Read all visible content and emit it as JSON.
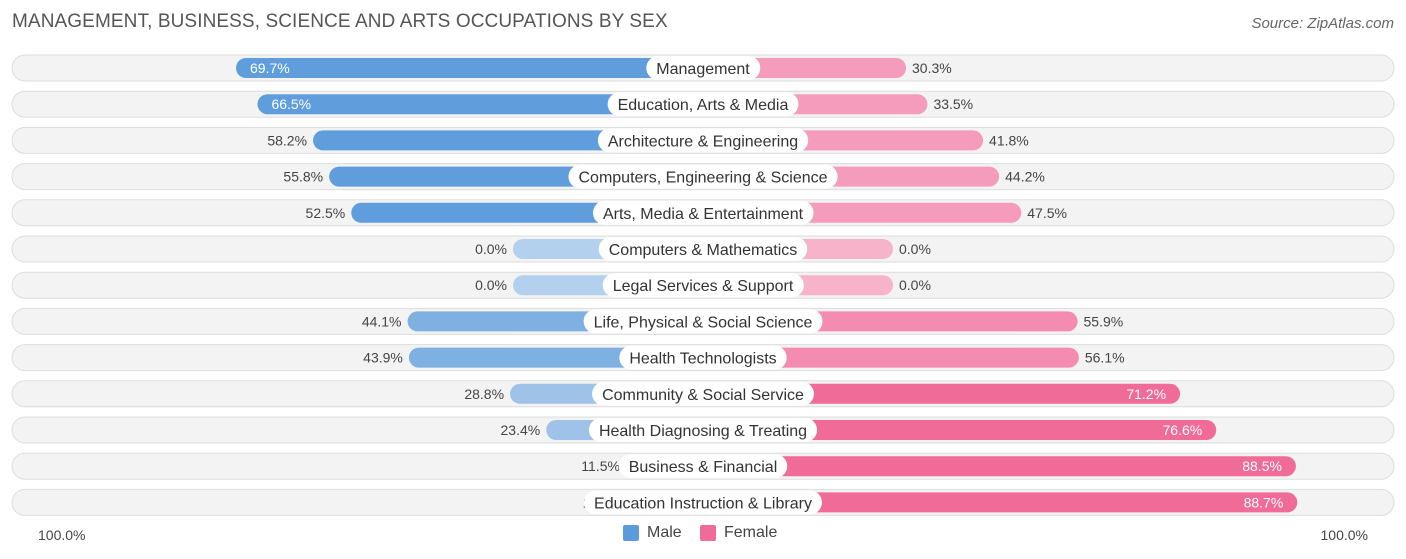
{
  "header": {
    "title": "MANAGEMENT, BUSINESS, SCIENCE AND ARTS OCCUPATIONS BY SEX",
    "source": "Source: ZipAtlas.com"
  },
  "legend": {
    "male_label": "Male",
    "female_label": "Female"
  },
  "axis": {
    "left_label": "100.0%",
    "right_label": "100.0%"
  },
  "colors": {
    "male_strong": "#5b9bdc",
    "male_light": "#a9c9ea",
    "female_strong": "#f06b98",
    "female_light": "#f7a9c3",
    "track": "#f1f1f1"
  },
  "chart_data": {
    "type": "bar",
    "orientation": "horizontal-diverging",
    "title": "MANAGEMENT, BUSINESS, SCIENCE AND ARTS OCCUPATIONS BY SEX",
    "xlim": [
      -100,
      100
    ],
    "categories": [
      "Management",
      "Education, Arts & Media",
      "Architecture & Engineering",
      "Computers, Engineering & Science",
      "Arts, Media & Entertainment",
      "Computers & Mathematics",
      "Legal Services & Support",
      "Life, Physical & Social Science",
      "Health Technologists",
      "Community & Social Service",
      "Health Diagnosing & Treating",
      "Business & Financial",
      "Education Instruction & Library"
    ],
    "series": [
      {
        "name": "Male",
        "values": [
          69.7,
          66.5,
          58.2,
          55.8,
          52.5,
          0.0,
          0.0,
          44.1,
          43.9,
          28.8,
          23.4,
          11.5,
          11.3
        ],
        "labels": [
          "69.7%",
          "66.5%",
          "58.2%",
          "55.8%",
          "52.5%",
          "0.0%",
          "0.0%",
          "44.1%",
          "43.9%",
          "28.8%",
          "23.4%",
          "11.5%",
          "11.3%"
        ]
      },
      {
        "name": "Female",
        "values": [
          30.3,
          33.5,
          41.8,
          44.2,
          47.5,
          0.0,
          0.0,
          55.9,
          56.1,
          71.2,
          76.6,
          88.5,
          88.7
        ],
        "labels": [
          "30.3%",
          "33.5%",
          "41.8%",
          "44.2%",
          "47.5%",
          "0.0%",
          "0.0%",
          "55.9%",
          "56.1%",
          "71.2%",
          "76.6%",
          "88.5%",
          "88.7%"
        ]
      }
    ],
    "legend_position": "bottom-center"
  }
}
